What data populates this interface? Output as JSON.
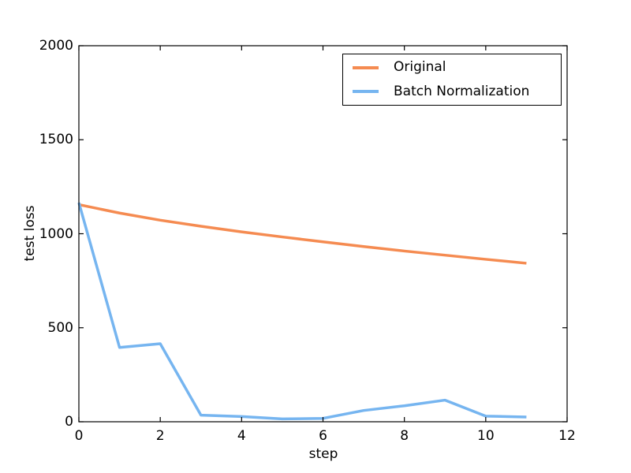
{
  "axes": {
    "xlabel": "step",
    "ylabel": "test loss"
  },
  "chart_data": {
    "type": "line",
    "title": "",
    "xlabel": "step",
    "ylabel": "test loss",
    "xlim": [
      0,
      12
    ],
    "ylim": [
      0,
      2000
    ],
    "xticks": [
      0,
      2,
      4,
      6,
      8,
      10,
      12
    ],
    "yticks": [
      0,
      500,
      1000,
      1500,
      2000
    ],
    "grid": false,
    "legend_position": "upper center inside",
    "x": [
      0,
      1,
      2,
      3,
      4,
      5,
      6,
      7,
      8,
      9,
      10,
      11
    ],
    "series": [
      {
        "name": "Original",
        "color": "#F58B51",
        "values": [
          1155,
          1110,
          1072,
          1040,
          1010,
          983,
          957,
          932,
          908,
          886,
          864,
          843
        ]
      },
      {
        "name": "Batch Normalization",
        "color": "#76B5F0",
        "values": [
          1165,
          395,
          415,
          35,
          28,
          15,
          18,
          60,
          85,
          115,
          30,
          25
        ]
      }
    ]
  }
}
